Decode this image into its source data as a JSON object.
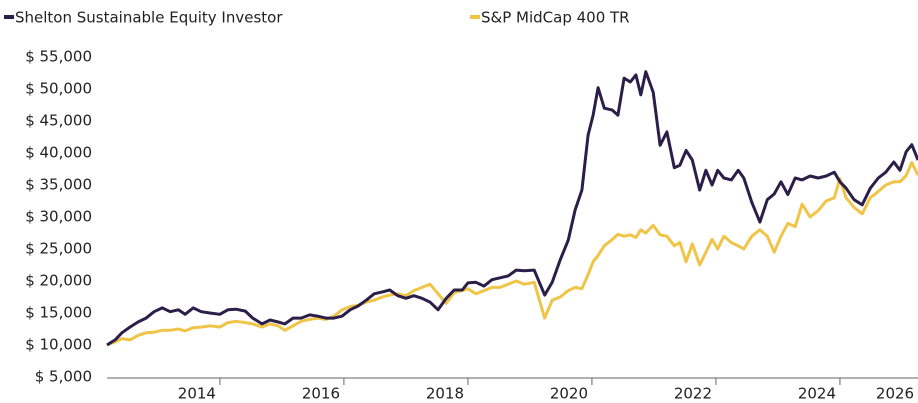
{
  "chart_data": {
    "type": "line",
    "x": [
      2012.55,
      2012.68,
      2012.79,
      2012.92,
      2013.05,
      2013.18,
      2013.31,
      2013.44,
      2013.57,
      2013.7,
      2013.81,
      2013.94,
      2014.07,
      2014.21,
      2014.37,
      2014.5,
      2014.63,
      2014.78,
      2014.9,
      2015.05,
      2015.18,
      2015.31,
      2015.42,
      2015.55,
      2015.68,
      2015.82,
      2015.95,
      2016.08,
      2016.21,
      2016.34,
      2016.47,
      2016.6,
      2016.73,
      2016.86,
      2016.99,
      2017.11,
      2017.24,
      2017.37,
      2017.5,
      2017.63,
      2017.76,
      2017.89,
      2018.02,
      2018.15,
      2018.28,
      2018.37,
      2018.5,
      2018.63,
      2018.76,
      2018.89,
      2019.02,
      2019.15,
      2019.28,
      2019.44,
      2019.61,
      2019.73,
      2019.86,
      2019.99,
      2020.1,
      2020.21,
      2020.31,
      2020.39,
      2020.47,
      2020.57,
      2020.7,
      2020.79,
      2020.89,
      2020.99,
      2021.08,
      2021.16,
      2021.24,
      2021.36,
      2021.47,
      2021.58,
      2021.7,
      2021.79,
      2021.89,
      2021.99,
      2022.11,
      2022.21,
      2022.31,
      2022.4,
      2022.5,
      2022.62,
      2022.73,
      2022.82,
      2022.95,
      2023.08,
      2023.2,
      2023.31,
      2023.42,
      2023.53,
      2023.65,
      2023.76,
      2023.89,
      2024.02,
      2024.15,
      2024.28,
      2024.37,
      2024.47,
      2024.6,
      2024.73,
      2024.86,
      2024.99,
      2025.11,
      2025.24,
      2025.34,
      2025.44,
      2025.53,
      2025.63
    ],
    "series": [
      {
        "name": "Shelton Sustainable Equity Investor",
        "color": "#2b1f4a",
        "values": [
          10000,
          10800,
          11900,
          12800,
          13600,
          14200,
          15200,
          15800,
          15200,
          15500,
          14800,
          15800,
          15200,
          15000,
          14800,
          15500,
          15600,
          15300,
          14200,
          13300,
          13900,
          13600,
          13300,
          14200,
          14200,
          14700,
          14500,
          14200,
          14200,
          14500,
          15500,
          16100,
          17000,
          18000,
          18300,
          18600,
          17700,
          17300,
          17700,
          17300,
          16700,
          15500,
          17300,
          18600,
          18600,
          19700,
          19800,
          19200,
          20200,
          20500,
          20800,
          21700,
          21600,
          21700,
          17800,
          19800,
          23300,
          26400,
          31100,
          34200,
          42800,
          45900,
          50200,
          47000,
          46700,
          45900,
          51700,
          51100,
          52200,
          49100,
          52700,
          49500,
          41200,
          43300,
          37700,
          38100,
          40400,
          38900,
          34200,
          37300,
          35000,
          37300,
          36100,
          35800,
          37300,
          36100,
          32300,
          29200,
          32700,
          33600,
          35500,
          33500,
          36100,
          35800,
          36400,
          36100,
          36400,
          37000,
          35500,
          34500,
          32700,
          31900,
          34500,
          36100,
          37000,
          38600,
          37300,
          40200,
          41300,
          38900
        ]
      },
      {
        "name": "S&P MidCap 400 TR",
        "color": "#f0c447",
        "values": [
          10000,
          10500,
          11000,
          10800,
          11500,
          11900,
          12000,
          12300,
          12300,
          12500,
          12200,
          12700,
          12800,
          13000,
          12800,
          13500,
          13700,
          13500,
          13300,
          12800,
          13300,
          13000,
          12300,
          13000,
          13700,
          14000,
          14200,
          14000,
          14500,
          15500,
          16000,
          16200,
          16700,
          17000,
          17500,
          17800,
          18000,
          17700,
          18500,
          19000,
          19500,
          18000,
          16500,
          18200,
          18500,
          18800,
          18000,
          18500,
          19000,
          19000,
          19500,
          20000,
          19500,
          19800,
          14200,
          17000,
          17500,
          18500,
          19000,
          18800,
          21000,
          23000,
          24000,
          25500,
          26500,
          27300,
          27000,
          27200,
          26800,
          28000,
          27500,
          28700,
          27200,
          27000,
          25500,
          26000,
          23000,
          25800,
          22500,
          24500,
          26500,
          25000,
          27000,
          26000,
          25500,
          25000,
          27000,
          28000,
          27000,
          24500,
          27000,
          29000,
          28500,
          32000,
          30000,
          31000,
          32500,
          33000,
          36000,
          33000,
          31500,
          30500,
          33000,
          34000,
          35000,
          35500,
          35500,
          36500,
          38500,
          36500
        ]
      }
    ],
    "xlim": [
      2012.55,
      2025.63
    ],
    "xticks": [
      2014,
      2016,
      2018,
      2020,
      2022,
      2024,
      2026
    ],
    "ylim": [
      5000,
      55000
    ],
    "yticks": [
      {
        "value": 5000,
        "label": "$ 5,000"
      },
      {
        "value": 10000,
        "label": "$ 10,000"
      },
      {
        "value": 15000,
        "label": "$ 15,000"
      },
      {
        "value": 20000,
        "label": "$ 20,000"
      },
      {
        "value": 25000,
        "label": "$ 25,000"
      },
      {
        "value": 30000,
        "label": "$ 30,000"
      },
      {
        "value": 35000,
        "label": "$ 35,000"
      },
      {
        "value": 40000,
        "label": "$ 40,000"
      },
      {
        "value": 45000,
        "label": "$ 45,000"
      },
      {
        "value": 50000,
        "label": "$ 50,000"
      },
      {
        "value": 55000,
        "label": "$ 55,000"
      }
    ],
    "grid": false,
    "legend": "top"
  }
}
